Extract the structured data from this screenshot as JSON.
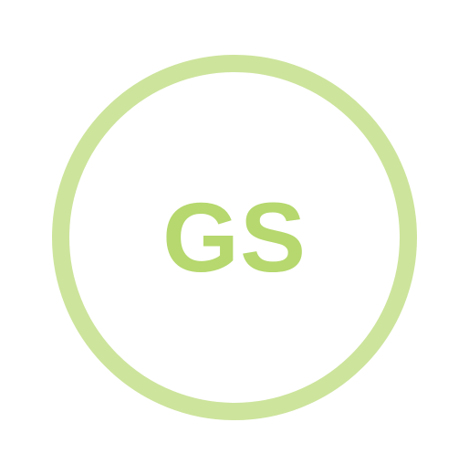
{
  "avatar": {
    "initials": "GS",
    "ring_color": "#cde49c",
    "text_color": "#b6d86e",
    "background_color": "#ffffff"
  }
}
